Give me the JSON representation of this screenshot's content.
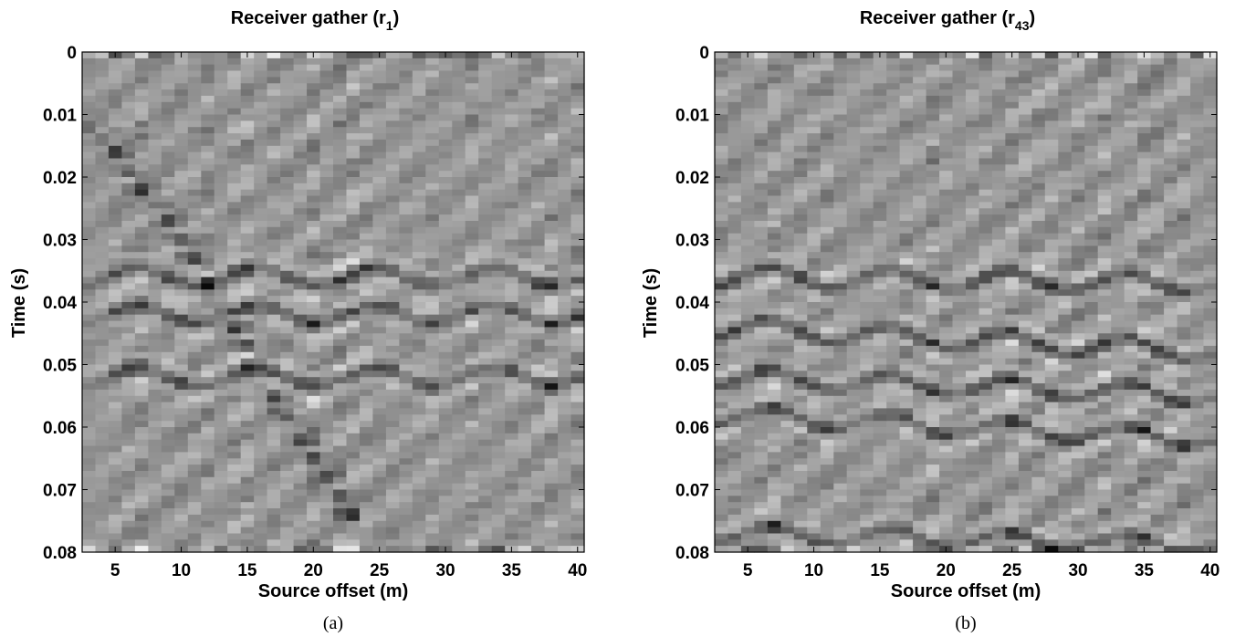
{
  "chart_data": [
    {
      "type": "heatmap",
      "panel_label": "(a)",
      "title": "Receiver gather (r",
      "title_sub": "1",
      "title_close": ")",
      "xlabel": "Source offset (m)",
      "ylabel": "Time (s)",
      "xlim": [
        2.5,
        40.5
      ],
      "ylim": [
        0,
        0.08
      ],
      "y_reversed": true,
      "x_ticks": [
        5,
        10,
        15,
        20,
        25,
        30,
        35,
        40
      ],
      "y_ticks": [
        0,
        0.01,
        0.02,
        0.03,
        0.04,
        0.05,
        0.06,
        0.07,
        0.08
      ],
      "x_tick_labels": [
        "5",
        "10",
        "15",
        "20",
        "25",
        "30",
        "35",
        "40"
      ],
      "y_tick_labels": [
        "0",
        "0.01",
        "0.02",
        "0.03",
        "0.04",
        "0.05",
        "0.06",
        "0.07",
        "0.08"
      ],
      "colormap": "gray",
      "traces": 38,
      "first_breaks": [
        {
          "offset": 3,
          "time": 0.012
        },
        {
          "offset": 5,
          "time": 0.016
        },
        {
          "offset": 7,
          "time": 0.022
        },
        {
          "offset": 9,
          "time": 0.027
        },
        {
          "offset": 11,
          "time": 0.033
        },
        {
          "offset": 13,
          "time": 0.041
        },
        {
          "offset": 15,
          "time": 0.047
        },
        {
          "offset": 17,
          "time": 0.055
        },
        {
          "offset": 19,
          "time": 0.062
        },
        {
          "offset": 21,
          "time": 0.068
        },
        {
          "offset": 23,
          "time": 0.074
        }
      ],
      "reflections": [
        {
          "time_at_start": 0.036,
          "time_at_end": 0.036
        },
        {
          "time_at_start": 0.042,
          "time_at_end": 0.042
        },
        {
          "time_at_start": 0.052,
          "time_at_end": 0.052
        }
      ]
    },
    {
      "type": "heatmap",
      "panel_label": "(b)",
      "title": "Receiver gather (r",
      "title_sub": "43",
      "title_close": ")",
      "xlabel": "Source offset (m)",
      "ylabel": "Time (s)",
      "xlim": [
        2.5,
        40.5
      ],
      "ylim": [
        0,
        0.08
      ],
      "y_reversed": true,
      "x_ticks": [
        5,
        10,
        15,
        20,
        25,
        30,
        35,
        40
      ],
      "y_ticks": [
        0,
        0.01,
        0.02,
        0.03,
        0.04,
        0.05,
        0.06,
        0.07,
        0.08
      ],
      "x_tick_labels": [
        "5",
        "10",
        "15",
        "20",
        "25",
        "30",
        "35",
        "40"
      ],
      "y_tick_labels": [
        "0",
        "0.01",
        "0.02",
        "0.03",
        "0.04",
        "0.05",
        "0.06",
        "0.07",
        "0.08"
      ],
      "colormap": "gray",
      "traces": 38,
      "reflections": [
        {
          "time_at_start": 0.036,
          "time_at_end": 0.037
        },
        {
          "time_at_start": 0.044,
          "time_at_end": 0.048
        },
        {
          "time_at_start": 0.052,
          "time_at_end": 0.055
        },
        {
          "time_at_start": 0.058,
          "time_at_end": 0.062
        },
        {
          "time_at_start": 0.077,
          "time_at_end": 0.079
        }
      ]
    }
  ]
}
